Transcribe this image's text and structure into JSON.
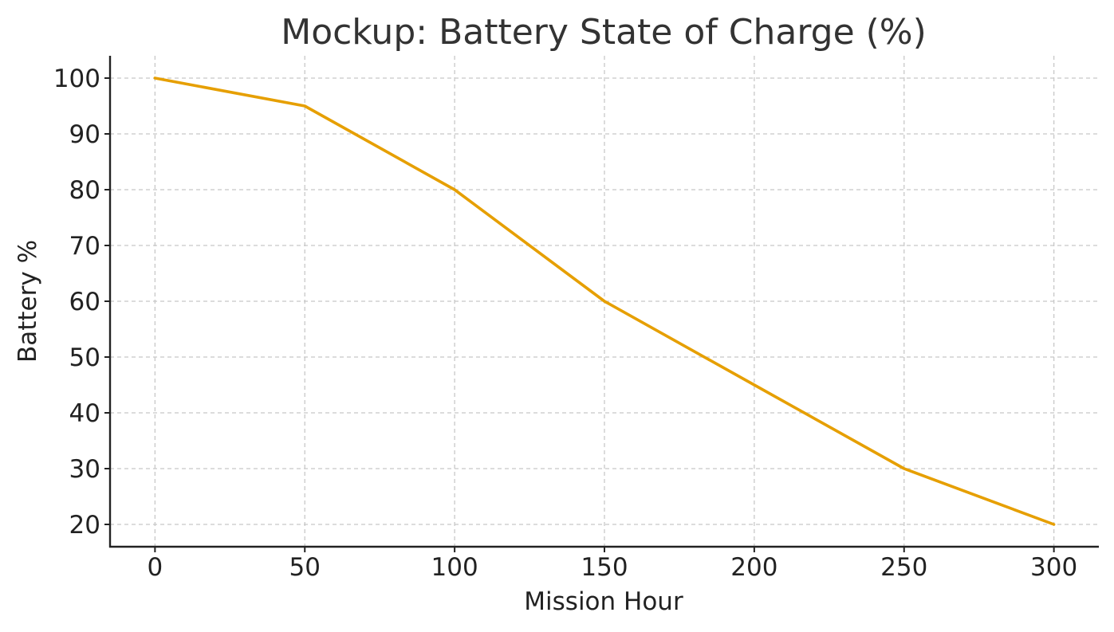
{
  "chart_data": {
    "type": "line",
    "title": "Mockup: Battery State of Charge (%)",
    "xlabel": "Mission Hour",
    "ylabel": "Battery %",
    "x": [
      0,
      50,
      100,
      150,
      200,
      250,
      300
    ],
    "series": [
      {
        "values": [
          100,
          95,
          80,
          60,
          45,
          30,
          20
        ],
        "color": "#E69F00"
      }
    ],
    "xlim": [
      -15,
      315
    ],
    "ylim": [
      16,
      104
    ],
    "x_ticks": [
      "0",
      "50",
      "100",
      "150",
      "200",
      "250",
      "300"
    ],
    "y_ticks": [
      "20",
      "30",
      "40",
      "50",
      "60",
      "70",
      "80",
      "90",
      "100"
    ],
    "grid": true,
    "legend": "none"
  }
}
